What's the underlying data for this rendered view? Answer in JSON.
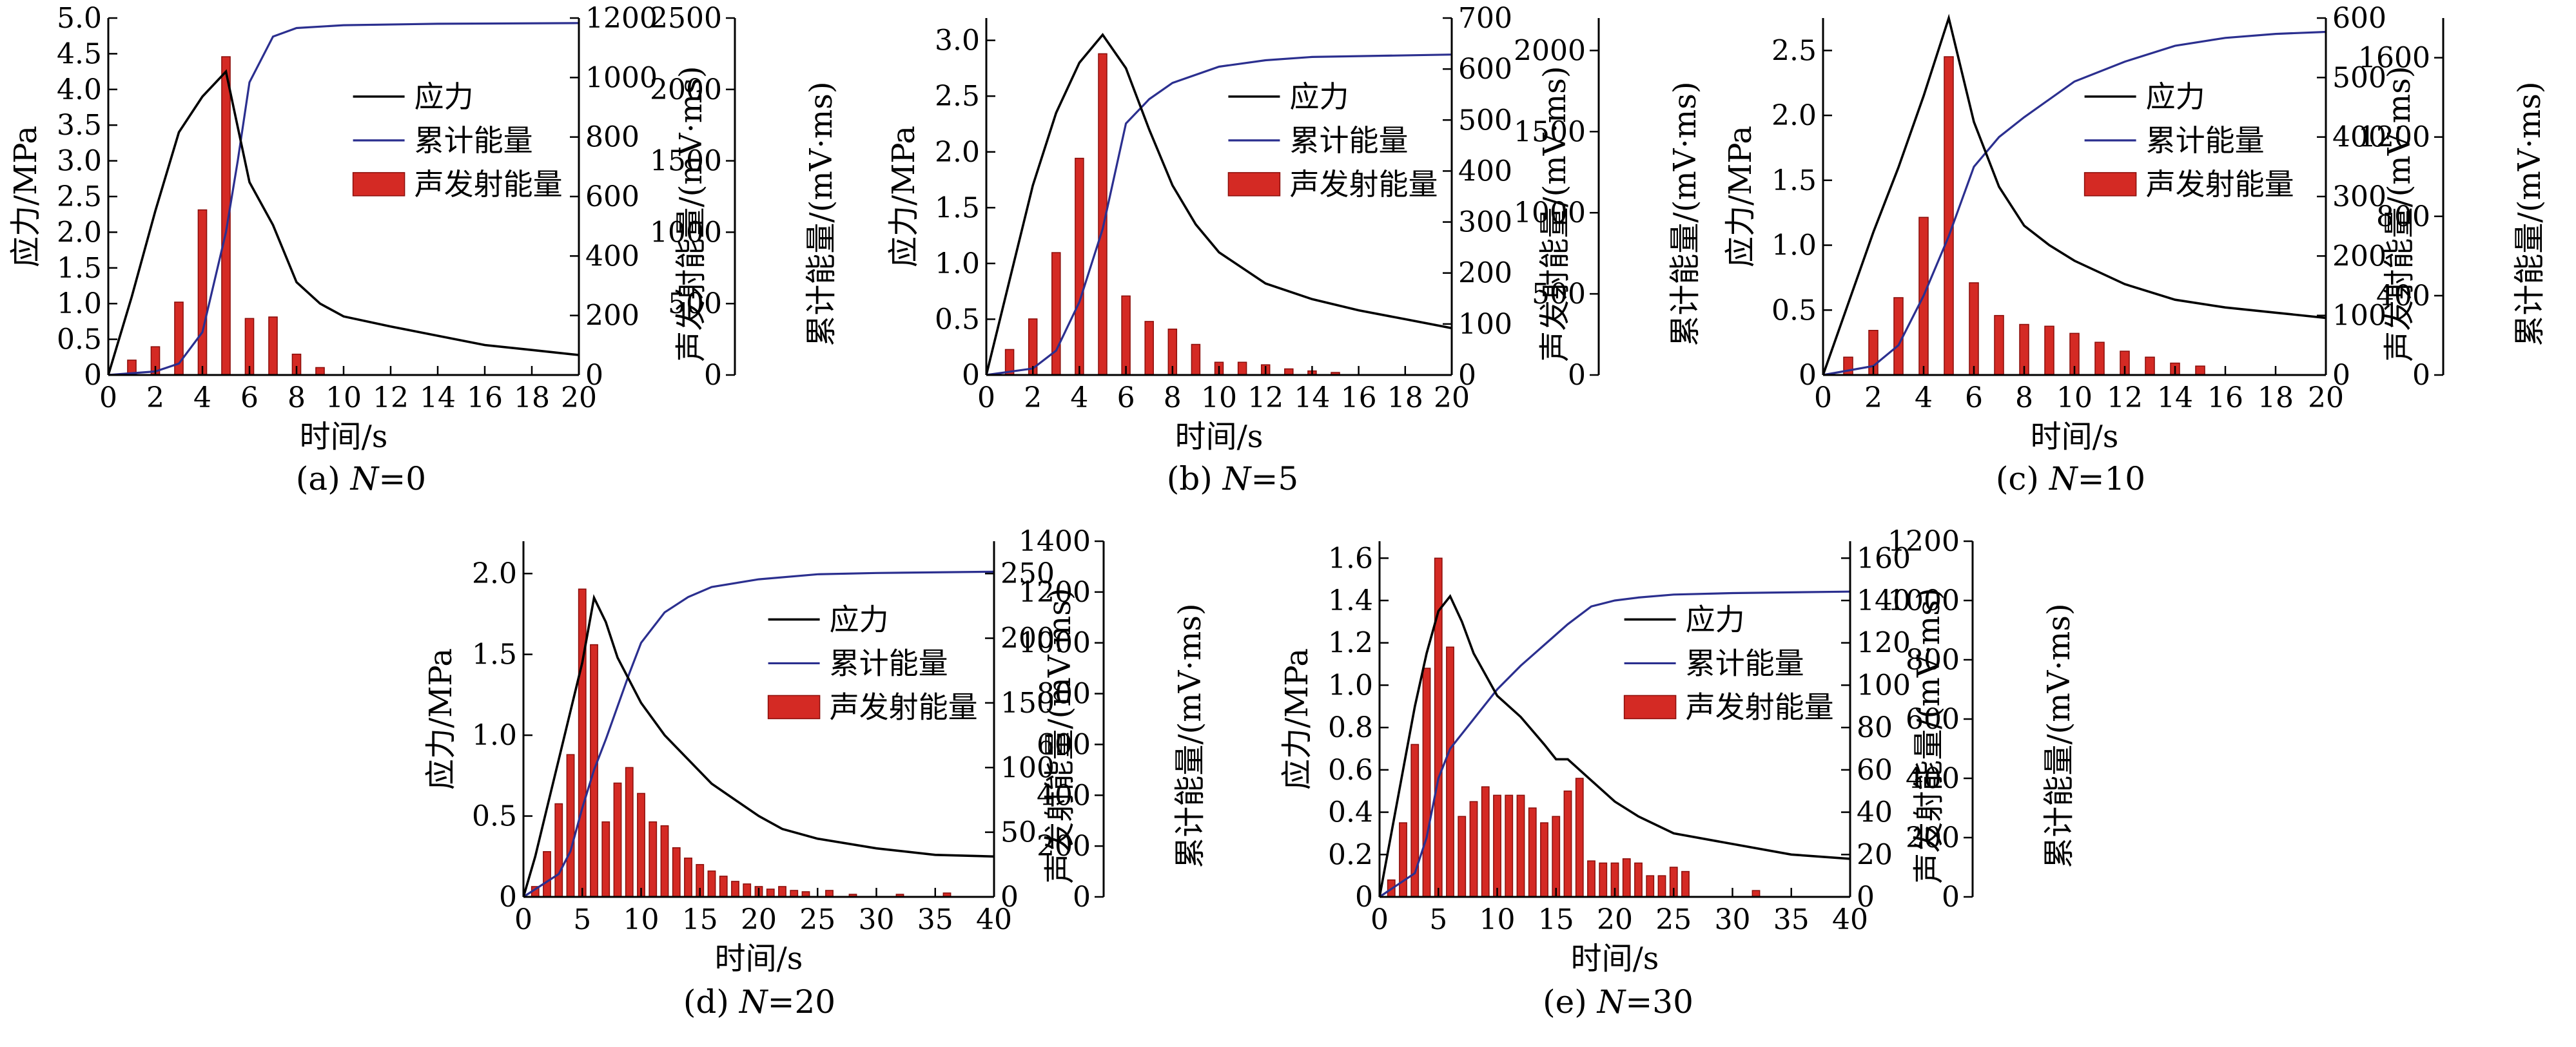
{
  "colors": {
    "stress": "#000000",
    "cumulative": "#2b2f8f",
    "bar": "#d42a24",
    "bar_edge": "#8a0d0a"
  },
  "chart_data": [
    {
      "type": "bar",
      "caption_prefix": "(a) ",
      "caption_var": "N",
      "caption_suffix": "=0",
      "xlabel": "时间/s",
      "ylabel_left": "应力/MPa",
      "ylabel_r1": "声发射能量/(mV·ms)",
      "ylabel_r2": "累计能量/(mV·ms)",
      "legend": [
        "应力",
        "累计能量",
        "声发射能量"
      ],
      "xlim": [
        0,
        20
      ],
      "xticks": [
        0,
        2,
        4,
        6,
        8,
        10,
        12,
        14,
        16,
        18,
        20
      ],
      "ylim_left": [
        0,
        5
      ],
      "yticks_left": [
        "0",
        "0.5",
        "1.0",
        "1.5",
        "2.0",
        "2.5",
        "3.0",
        "3.5",
        "4.0",
        "4.5",
        "5.0"
      ],
      "ylim_r1": [
        0,
        1200
      ],
      "yticks_r1": [
        "0",
        "200",
        "400",
        "600",
        "800",
        "1000",
        "1200"
      ],
      "ylim_r2": [
        0,
        2500
      ],
      "yticks_r2": [
        "0",
        "500",
        "1000",
        "1500",
        "2000",
        "2500"
      ],
      "stress": [
        [
          0,
          0
        ],
        [
          1,
          1.1
        ],
        [
          2,
          2.3
        ],
        [
          3,
          3.4
        ],
        [
          4,
          3.9
        ],
        [
          5,
          4.25
        ],
        [
          6,
          2.7
        ],
        [
          7,
          2.1
        ],
        [
          8,
          1.3
        ],
        [
          9,
          1.0
        ],
        [
          10,
          0.82
        ],
        [
          12,
          0.68
        ],
        [
          14,
          0.55
        ],
        [
          16,
          0.42
        ],
        [
          18,
          0.35
        ],
        [
          20,
          0.28
        ]
      ],
      "cumulative": [
        [
          0,
          0
        ],
        [
          2,
          25
        ],
        [
          3,
          80
        ],
        [
          4,
          300
        ],
        [
          5,
          1000
        ],
        [
          5.5,
          1500
        ],
        [
          6,
          2050
        ],
        [
          7,
          2370
        ],
        [
          8,
          2430
        ],
        [
          10,
          2450
        ],
        [
          14,
          2460
        ],
        [
          20,
          2465
        ]
      ],
      "ae": [
        [
          1,
          50
        ],
        [
          2,
          95
        ],
        [
          3,
          245
        ],
        [
          4,
          555
        ],
        [
          5,
          1070
        ],
        [
          6,
          190
        ],
        [
          7,
          195
        ],
        [
          8,
          70
        ],
        [
          9,
          25
        ]
      ]
    },
    {
      "type": "bar",
      "caption_prefix": "(b) ",
      "caption_var": "N",
      "caption_suffix": "=5",
      "xlabel": "时间/s",
      "ylabel_left": "应力/MPa",
      "ylabel_r1": "声发射能量/(mV·ms)",
      "ylabel_r2": "累计能量/(mV·ms)",
      "legend": [
        "应力",
        "累计能量",
        "声发射能量"
      ],
      "xlim": [
        0,
        20
      ],
      "xticks": [
        0,
        2,
        4,
        6,
        8,
        10,
        12,
        14,
        16,
        18,
        20
      ],
      "ylim_left": [
        0,
        3.2
      ],
      "yticks_left": [
        "0",
        "0.5",
        "1.0",
        "1.5",
        "2.0",
        "2.5",
        "3.0"
      ],
      "ylim_r1": [
        0,
        700
      ],
      "yticks_r1": [
        "0",
        "100",
        "200",
        "300",
        "400",
        "500",
        "600",
        "700"
      ],
      "ylim_r2": [
        0,
        2200
      ],
      "yticks_r2": [
        "0",
        "500",
        "1000",
        "1500",
        "2000"
      ],
      "stress": [
        [
          0,
          0
        ],
        [
          1,
          0.85
        ],
        [
          2,
          1.7
        ],
        [
          3,
          2.35
        ],
        [
          4,
          2.8
        ],
        [
          5,
          3.05
        ],
        [
          6,
          2.75
        ],
        [
          7,
          2.2
        ],
        [
          8,
          1.7
        ],
        [
          9,
          1.35
        ],
        [
          10,
          1.1
        ],
        [
          12,
          0.82
        ],
        [
          14,
          0.68
        ],
        [
          16,
          0.58
        ],
        [
          18,
          0.5
        ],
        [
          20,
          0.42
        ]
      ],
      "cumulative": [
        [
          0,
          0
        ],
        [
          2,
          40
        ],
        [
          3,
          150
        ],
        [
          4,
          450
        ],
        [
          5,
          900
        ],
        [
          6,
          1550
        ],
        [
          7,
          1700
        ],
        [
          8,
          1800
        ],
        [
          10,
          1900
        ],
        [
          12,
          1940
        ],
        [
          14,
          1960
        ],
        [
          20,
          1975
        ]
      ],
      "ae": [
        [
          1,
          50
        ],
        [
          2,
          110
        ],
        [
          3,
          240
        ],
        [
          4,
          425
        ],
        [
          5,
          630
        ],
        [
          6,
          155
        ],
        [
          7,
          105
        ],
        [
          8,
          90
        ],
        [
          9,
          60
        ],
        [
          10,
          25
        ],
        [
          11,
          25
        ],
        [
          12,
          20
        ],
        [
          13,
          12
        ],
        [
          14,
          8
        ],
        [
          15,
          5
        ]
      ]
    },
    {
      "type": "bar",
      "caption_prefix": "(c) ",
      "caption_var": "N",
      "caption_suffix": "=10",
      "xlabel": "时间/s",
      "ylabel_left": "应力/MPa",
      "ylabel_r1": "声发射能量/(mV·ms)",
      "ylabel_r2": "累计能量/(mV·ms)",
      "legend": [
        "应力",
        "累计能量",
        "声发射能量"
      ],
      "xlim": [
        0,
        20
      ],
      "xticks": [
        0,
        2,
        4,
        6,
        8,
        10,
        12,
        14,
        16,
        18,
        20
      ],
      "ylim_left": [
        0,
        2.75
      ],
      "yticks_left": [
        "0",
        "0.5",
        "1.0",
        "1.5",
        "2.0",
        "2.5"
      ],
      "ylim_r1": [
        0,
        600
      ],
      "yticks_r1": [
        "0",
        "100",
        "200",
        "300",
        "400",
        "500",
        "600"
      ],
      "ylim_r2": [
        0,
        1800
      ],
      "yticks_r2": [
        "0",
        "400",
        "800",
        "1200",
        "1600"
      ],
      "stress": [
        [
          0,
          0
        ],
        [
          1,
          0.55
        ],
        [
          2,
          1.1
        ],
        [
          3,
          1.6
        ],
        [
          4,
          2.15
        ],
        [
          5,
          2.75
        ],
        [
          6,
          1.95
        ],
        [
          7,
          1.45
        ],
        [
          8,
          1.15
        ],
        [
          9,
          1.0
        ],
        [
          10,
          0.88
        ],
        [
          12,
          0.7
        ],
        [
          14,
          0.58
        ],
        [
          16,
          0.52
        ],
        [
          18,
          0.48
        ],
        [
          20,
          0.44
        ]
      ],
      "cumulative": [
        [
          0,
          0
        ],
        [
          2,
          45
        ],
        [
          3,
          150
        ],
        [
          4,
          400
        ],
        [
          5,
          700
        ],
        [
          6,
          1050
        ],
        [
          7,
          1200
        ],
        [
          8,
          1300
        ],
        [
          10,
          1480
        ],
        [
          12,
          1580
        ],
        [
          14,
          1660
        ],
        [
          16,
          1700
        ],
        [
          18,
          1720
        ],
        [
          20,
          1730
        ]
      ],
      "ae": [
        [
          1,
          30
        ],
        [
          2,
          75
        ],
        [
          3,
          130
        ],
        [
          4,
          265
        ],
        [
          5,
          535
        ],
        [
          6,
          155
        ],
        [
          7,
          100
        ],
        [
          8,
          85
        ],
        [
          9,
          82
        ],
        [
          10,
          70
        ],
        [
          11,
          55
        ],
        [
          12,
          40
        ],
        [
          13,
          30
        ],
        [
          14,
          20
        ],
        [
          15,
          15
        ]
      ]
    },
    {
      "type": "bar",
      "caption_prefix": "(d) ",
      "caption_var": "N",
      "caption_suffix": "=20",
      "xlabel": "时间/s",
      "ylabel_left": "应力/MPa",
      "ylabel_r1": "声发射能量/(mV·ms)",
      "ylabel_r2": "累计能量/(mV·ms)",
      "legend": [
        "应力",
        "累计能量",
        "声发射能量"
      ],
      "xlim": [
        0,
        40
      ],
      "xticks": [
        0,
        5,
        10,
        15,
        20,
        25,
        30,
        35,
        40
      ],
      "ylim_left": [
        0,
        2.2
      ],
      "yticks_left": [
        "0",
        "0.5",
        "1.0",
        "1.5",
        "2.0"
      ],
      "ylim_r1": [
        0,
        275
      ],
      "yticks_r1": [
        "0",
        "50",
        "100",
        "150",
        "200",
        "250"
      ],
      "ylim_r2": [
        0,
        1400
      ],
      "yticks_r2": [
        "0",
        "200",
        "400",
        "600",
        "800",
        "1000",
        "1200",
        "1400"
      ],
      "stress": [
        [
          0,
          0
        ],
        [
          1,
          0.25
        ],
        [
          2,
          0.55
        ],
        [
          3,
          0.85
        ],
        [
          4,
          1.15
        ],
        [
          5,
          1.45
        ],
        [
          6,
          1.85
        ],
        [
          7,
          1.7
        ],
        [
          8,
          1.48
        ],
        [
          10,
          1.2
        ],
        [
          12,
          1.0
        ],
        [
          14,
          0.85
        ],
        [
          16,
          0.7
        ],
        [
          18,
          0.6
        ],
        [
          20,
          0.5
        ],
        [
          22,
          0.42
        ],
        [
          25,
          0.36
        ],
        [
          30,
          0.3
        ],
        [
          35,
          0.26
        ],
        [
          40,
          0.25
        ]
      ],
      "cumulative": [
        [
          0,
          0
        ],
        [
          3,
          90
        ],
        [
          4,
          180
        ],
        [
          5,
          350
        ],
        [
          6,
          500
        ],
        [
          7,
          620
        ],
        [
          8,
          750
        ],
        [
          9,
          880
        ],
        [
          10,
          1000
        ],
        [
          12,
          1120
        ],
        [
          14,
          1180
        ],
        [
          16,
          1220
        ],
        [
          20,
          1250
        ],
        [
          25,
          1270
        ],
        [
          30,
          1275
        ],
        [
          40,
          1280
        ]
      ],
      "ae": [
        [
          1,
          8
        ],
        [
          2,
          35
        ],
        [
          3,
          72
        ],
        [
          4,
          110
        ],
        [
          5,
          238
        ],
        [
          6,
          195
        ],
        [
          7,
          58
        ],
        [
          8,
          88
        ],
        [
          9,
          100
        ],
        [
          10,
          80
        ],
        [
          11,
          58
        ],
        [
          12,
          55
        ],
        [
          13,
          38
        ],
        [
          14,
          30
        ],
        [
          15,
          25
        ],
        [
          16,
          20
        ],
        [
          17,
          16
        ],
        [
          18,
          12
        ],
        [
          19,
          10
        ],
        [
          20,
          8
        ],
        [
          21,
          6
        ],
        [
          22,
          8
        ],
        [
          23,
          5
        ],
        [
          24,
          4
        ],
        [
          26,
          5
        ],
        [
          28,
          2
        ],
        [
          32,
          2
        ],
        [
          36,
          3
        ]
      ]
    },
    {
      "type": "bar",
      "caption_prefix": "(e) ",
      "caption_var": "N",
      "caption_suffix": "=30",
      "xlabel": "时间/s",
      "ylabel_left": "应力/MPa",
      "ylabel_r1": "声发射能量/(mV·ms)",
      "ylabel_r2": "累计能量/(mV·ms)",
      "legend": [
        "应力",
        "累计能量",
        "声发射能量"
      ],
      "xlim": [
        0,
        40
      ],
      "xticks": [
        0,
        5,
        10,
        15,
        20,
        25,
        30,
        35,
        40
      ],
      "ylim_left": [
        0,
        1.68
      ],
      "yticks_left": [
        "0",
        "0.2",
        "0.4",
        "0.6",
        "0.8",
        "1.0",
        "1.2",
        "1.4",
        "1.6"
      ],
      "ylim_r1": [
        0,
        168
      ],
      "yticks_r1": [
        "0",
        "20",
        "40",
        "60",
        "80",
        "100",
        "120",
        "140",
        "160"
      ],
      "ylim_r2": [
        0,
        1200
      ],
      "yticks_r2": [
        "0",
        "200",
        "400",
        "600",
        "800",
        "1000",
        "1200"
      ],
      "stress": [
        [
          0,
          0
        ],
        [
          1,
          0.3
        ],
        [
          2,
          0.6
        ],
        [
          3,
          0.9
        ],
        [
          4,
          1.15
        ],
        [
          5,
          1.35
        ],
        [
          6,
          1.42
        ],
        [
          7,
          1.3
        ],
        [
          8,
          1.15
        ],
        [
          10,
          0.95
        ],
        [
          12,
          0.85
        ],
        [
          14,
          0.72
        ],
        [
          15,
          0.65
        ],
        [
          16,
          0.65
        ],
        [
          18,
          0.55
        ],
        [
          20,
          0.45
        ],
        [
          22,
          0.38
        ],
        [
          25,
          0.3
        ],
        [
          30,
          0.25
        ],
        [
          35,
          0.2
        ],
        [
          40,
          0.18
        ]
      ],
      "cumulative": [
        [
          0,
          0
        ],
        [
          3,
          80
        ],
        [
          4,
          200
        ],
        [
          5,
          400
        ],
        [
          6,
          500
        ],
        [
          8,
          600
        ],
        [
          10,
          700
        ],
        [
          12,
          780
        ],
        [
          14,
          850
        ],
        [
          16,
          920
        ],
        [
          18,
          980
        ],
        [
          20,
          1000
        ],
        [
          22,
          1010
        ],
        [
          25,
          1020
        ],
        [
          30,
          1025
        ],
        [
          40,
          1030
        ]
      ],
      "ae": [
        [
          1,
          8
        ],
        [
          2,
          35
        ],
        [
          3,
          72
        ],
        [
          4,
          108
        ],
        [
          5,
          160
        ],
        [
          6,
          118
        ],
        [
          7,
          38
        ],
        [
          8,
          45
        ],
        [
          9,
          52
        ],
        [
          10,
          48
        ],
        [
          11,
          48
        ],
        [
          12,
          48
        ],
        [
          13,
          42
        ],
        [
          14,
          35
        ],
        [
          15,
          38
        ],
        [
          16,
          50
        ],
        [
          17,
          56
        ],
        [
          18,
          17
        ],
        [
          19,
          16
        ],
        [
          20,
          16
        ],
        [
          21,
          18
        ],
        [
          22,
          16
        ],
        [
          23,
          10
        ],
        [
          24,
          10
        ],
        [
          25,
          14
        ],
        [
          26,
          12
        ],
        [
          32,
          3
        ]
      ]
    }
  ]
}
